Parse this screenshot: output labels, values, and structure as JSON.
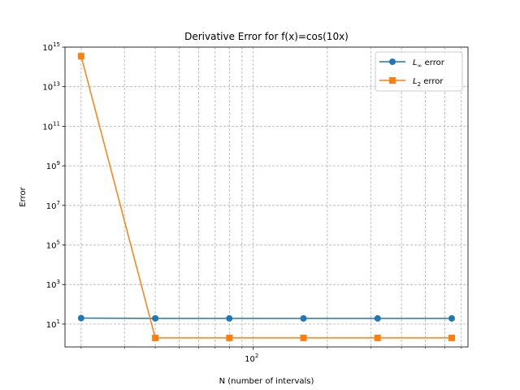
{
  "chart_data": {
    "type": "line",
    "title": "Derivative Error for f(x)=cos(10x)",
    "xlabel": "N (number of intervals)",
    "ylabel": "Error",
    "xscale": "log",
    "yscale": "log",
    "x": [
      20,
      40,
      80,
      160,
      320,
      640
    ],
    "series": [
      {
        "name": "L∞ error",
        "name_base": "L",
        "name_sub": "∞",
        "name_suffix": " error",
        "color": "#1f77b4",
        "marker": "circle",
        "values": [
          20,
          19.5,
          19.3,
          19.3,
          19.3,
          19.3
        ]
      },
      {
        "name": "L2 error",
        "name_base": "L",
        "name_sub": "2",
        "name_suffix": " error",
        "color": "#ff7f0e",
        "marker": "square",
        "values": [
          350000000000000.0,
          2,
          2,
          2,
          2,
          2
        ]
      }
    ],
    "xlim": [
      17.2,
      745
    ],
    "ylim": [
      0.7,
      1000000000000000.0
    ],
    "x_major_ticks": [
      {
        "value": 100,
        "base": "10",
        "exp": "2"
      }
    ],
    "x_minor_ticks": [
      20,
      30,
      40,
      50,
      60,
      70,
      80,
      90,
      200,
      300,
      400,
      500,
      600,
      700
    ],
    "y_ticks": [
      {
        "value": 10,
        "base": "10",
        "exp": "1"
      },
      {
        "value": 1000,
        "base": "10",
        "exp": "3"
      },
      {
        "value": 100000,
        "base": "10",
        "exp": "5"
      },
      {
        "value": 10000000,
        "base": "10",
        "exp": "7"
      },
      {
        "value": 1000000000,
        "base": "10",
        "exp": "9"
      },
      {
        "value": 100000000000,
        "base": "10",
        "exp": "11"
      },
      {
        "value": 10000000000000,
        "base": "10",
        "exp": "13"
      },
      {
        "value": 1000000000000000,
        "base": "10",
        "exp": "15"
      }
    ],
    "grid": true,
    "legend_position": "upper right"
  }
}
